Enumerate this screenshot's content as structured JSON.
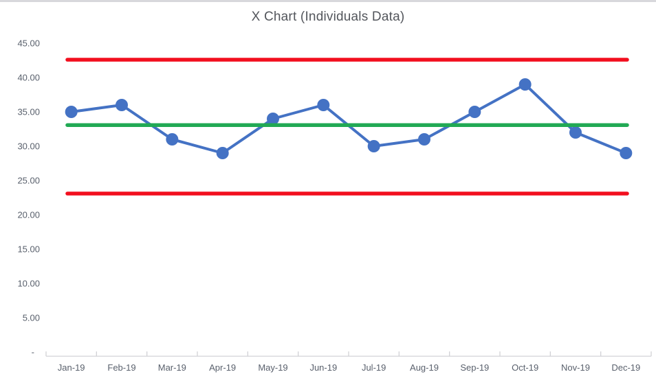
{
  "chart_data": {
    "type": "line",
    "title": "X Chart (Individuals Data)",
    "categories": [
      "Jan-19",
      "Feb-19",
      "Mar-19",
      "Apr-19",
      "May-19",
      "Jun-19",
      "Jul-19",
      "Aug-19",
      "Sep-19",
      "Oct-19",
      "Nov-19",
      "Dec-19"
    ],
    "series": [
      {
        "name": "individuals",
        "values": [
          35,
          36,
          31,
          29,
          34,
          36,
          30,
          31,
          35,
          39,
          32,
          29
        ],
        "color": "#4472c4",
        "marker": true
      },
      {
        "name": "center-line",
        "value": 33.08,
        "color": "#21a954"
      },
      {
        "name": "upper-control-limit",
        "value": 42.6,
        "color": "#f20f1e"
      },
      {
        "name": "lower-control-limit",
        "value": 23.1,
        "color": "#f20f1e"
      }
    ],
    "xlabel": "",
    "ylabel": "",
    "ylim": [
      0,
      45
    ],
    "yticks": [
      {
        "label": "45.00",
        "value": 45
      },
      {
        "label": "40.00",
        "value": 40
      },
      {
        "label": "35.00",
        "value": 35
      },
      {
        "label": "30.00",
        "value": 30
      },
      {
        "label": "25.00",
        "value": 25
      },
      {
        "label": "20.00",
        "value": 20
      },
      {
        "label": "15.00",
        "value": 15
      },
      {
        "label": "10.00",
        "value": 10
      },
      {
        "label": "5.00",
        "value": 5
      },
      {
        "label": "-",
        "value": 0
      }
    ],
    "grid": false,
    "legend_position": "none"
  },
  "colors": {
    "series_blue": "#4472c4",
    "center_green": "#21a954",
    "limit_red": "#f20f1e",
    "axis_gray": "#d2d2d6",
    "label_gray": "#59606c",
    "title_gray": "#53565c"
  }
}
